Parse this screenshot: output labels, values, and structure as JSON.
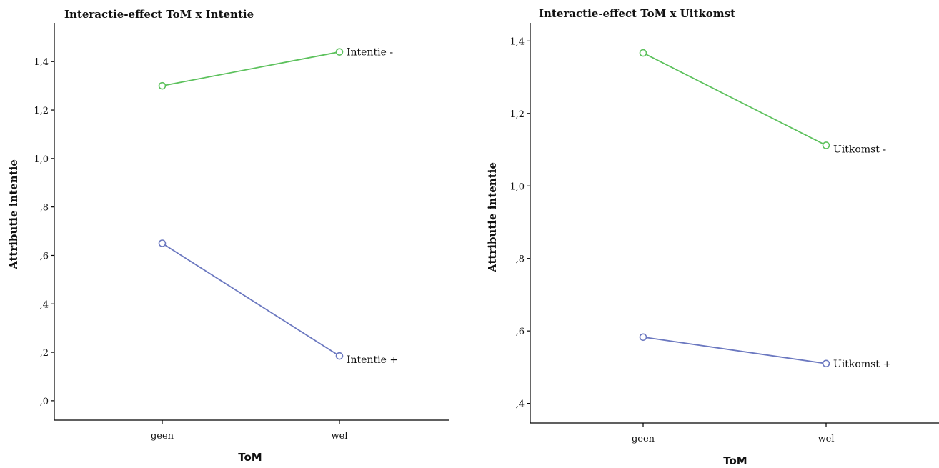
{
  "chart_data": [
    {
      "type": "line",
      "title": "Interactie-effect ToM x Intentie",
      "xlabel": "ToM",
      "ylabel": "Attributie intentie",
      "categories": [
        "geen",
        "wel"
      ],
      "y_ticks": [
        ",0",
        ",2",
        ",4",
        ",6",
        ",8",
        "1,0",
        "1,2",
        "1,4"
      ],
      "y_tick_values": [
        0.0,
        0.2,
        0.4,
        0.6,
        0.8,
        1.0,
        1.2,
        1.4
      ],
      "ylim": [
        -0.08,
        1.56
      ],
      "grid": false,
      "series": [
        {
          "name": "Intentie -",
          "values": [
            1.3,
            1.44
          ],
          "color": "#5cc15c"
        },
        {
          "name": "Intentie +",
          "values": [
            0.65,
            0.185
          ],
          "color": "#6b78c0"
        }
      ]
    },
    {
      "type": "line",
      "title": "Interactie-effect ToM x Uitkomst",
      "xlabel": "ToM",
      "ylabel": "Attributie intentie",
      "categories": [
        "geen",
        "wel"
      ],
      "y_ticks": [
        ",4",
        ",6",
        ",8",
        "1,0",
        "1,2",
        "1,4"
      ],
      "y_tick_values": [
        0.4,
        0.6,
        0.8,
        1.0,
        1.2,
        1.4
      ],
      "ylim": [
        0.346,
        1.45
      ],
      "grid": false,
      "series": [
        {
          "name": "Uitkomst -",
          "values": [
            1.367,
            1.112
          ],
          "color": "#5cc15c"
        },
        {
          "name": "Uitkomst +",
          "values": [
            0.583,
            0.51
          ],
          "color": "#6b78c0"
        }
      ]
    }
  ]
}
